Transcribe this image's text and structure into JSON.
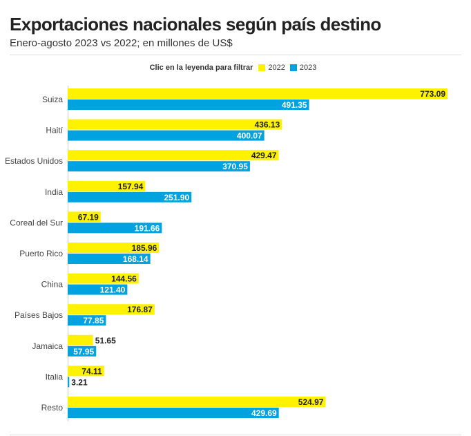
{
  "header": {
    "title": "Exportaciones nacionales según país destino",
    "subtitle": "Enero-agosto 2023 vs 2022; en millones de US$"
  },
  "legend": {
    "hint": "Clic en la leyenda para filtrar",
    "items": [
      {
        "label": "2022",
        "color": "#fff200"
      },
      {
        "label": "2023",
        "color": "#00a3e0"
      }
    ]
  },
  "chart_data": {
    "type": "bar",
    "orientation": "horizontal",
    "categories": [
      "Suiza",
      "Haití",
      "Estados Unidos",
      "India",
      "Coreal del Sur",
      "Puerto Rico",
      "China",
      "Países Bajos",
      "Jamaica",
      "Italia",
      "Resto"
    ],
    "series": [
      {
        "name": "2022",
        "color": "#fff200",
        "values": [
          773.09,
          436.13,
          429.47,
          157.94,
          67.19,
          185.96,
          144.56,
          176.87,
          51.65,
          74.11,
          524.97
        ]
      },
      {
        "name": "2023",
        "color": "#00a3e0",
        "values": [
          491.35,
          400.07,
          370.95,
          251.9,
          191.66,
          168.14,
          121.4,
          77.85,
          57.95,
          3.21,
          429.69
        ]
      }
    ],
    "xlim": [
      0,
      773.09
    ],
    "grid": false,
    "legend_position": "top-center",
    "value_labels": true
  }
}
